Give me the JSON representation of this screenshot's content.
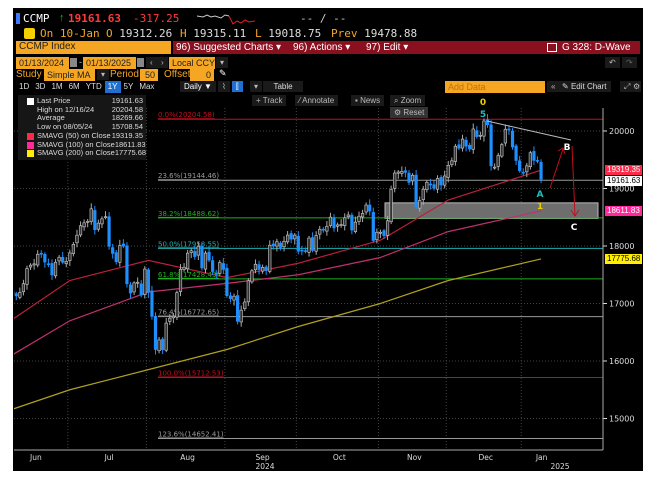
{
  "quote": {
    "ticker": "CCMP",
    "arrow": "↑",
    "last": "19161.63",
    "change": "-317.25",
    "bid_ask": "-- / --",
    "date_label": "On 10-Jan",
    "open_label": "O",
    "open": "19312.26",
    "high_label": "H",
    "high": "19315.11",
    "low_label": "L",
    "low": "19018.75",
    "prev_label": "Prev",
    "prev": "19478.88"
  },
  "toolbar": {
    "security": "CCMP Index",
    "suggested": "96) Suggested Charts ▾",
    "actions": "96) Actions ▾",
    "edit": "97) Edit ▾",
    "chart_id": "G 328: D-Wave",
    "start_date": "01/13/2024",
    "end_date": "01/13/2025",
    "currency": "Local CCY",
    "study_label": "Study",
    "study": "Simple MA",
    "period_label": "Period",
    "period": "50",
    "offset_label": "Offset",
    "offset": "0",
    "ranges": [
      "1D",
      "3D",
      "1M",
      "6M",
      "YTD",
      "1Y",
      "5Y",
      "Max"
    ],
    "selected_range": "1Y",
    "frequency": "Daily ▼",
    "table": "Table",
    "add_data_placeholder": "Add Data",
    "edit_chart": "Edit Chart",
    "track": "+ Track",
    "annotate": "Annotate",
    "news": "News",
    "zoom": "Zoom",
    "reset": "Reset"
  },
  "legend": [
    {
      "label": "Last Price",
      "value": "19161.63",
      "color": "#ffffff"
    },
    {
      "label": "High on 12/16/24",
      "value": "20204.58",
      "color": ""
    },
    {
      "label": "Average",
      "value": "18269.66",
      "color": ""
    },
    {
      "label": "Low on 08/05/24",
      "value": "15708.54",
      "color": ""
    },
    {
      "label": "SMAVG (50)  on Close",
      "value": "19319.35",
      "color": "#ff2a4a"
    },
    {
      "label": "SMAVG (100)  on Close",
      "value": "18611.83",
      "color": "#ff2a9a"
    },
    {
      "label": "SMAVG (200)  on Close",
      "value": "17775.68",
      "color": "#ffee00"
    }
  ],
  "colors": {
    "up": "#c8c8c8",
    "down": "#1e8fff",
    "sma50": "#b8203a",
    "sma100": "#c0306e",
    "sma200": "#b0a020",
    "accent": "#f5a623",
    "bar": "#8a1020"
  },
  "chart_data": {
    "type": "candlestick",
    "y_axis": {
      "ticks": [
        15000,
        16000,
        17000,
        18000,
        19000,
        20000
      ],
      "range": [
        14500,
        20400
      ],
      "side": "right"
    },
    "x_axis": {
      "labels": [
        "Jun",
        "Jul",
        "Aug",
        "Sep",
        "Oct",
        "Nov",
        "Dec",
        "Jan"
      ],
      "year_labels": [
        "2024",
        "2025"
      ]
    },
    "grid": true,
    "months": [
      {
        "month": "Jun",
        "closes": [
          16828,
          16857,
          17187,
          17173,
          17133,
          17192,
          17344,
          17608,
          17667,
          17689,
          17857,
          17862,
          17721,
          17689,
          17496,
          17718,
          17805,
          17717,
          17733
        ]
      },
      {
        "month": "Jul",
        "closes": [
          17879,
          18029,
          18188,
          18352,
          18403,
          18429,
          18647,
          18283,
          18398,
          18472,
          18509,
          17996,
          17871,
          17726,
          18008,
          17997,
          17342,
          17182,
          17358,
          17370,
          17147,
          17599
        ]
      },
      {
        "month": "Aug",
        "closes": [
          17195,
          16776,
          16200,
          16366,
          16196,
          16660,
          16745,
          16780,
          17188,
          17594,
          17631,
          17876,
          17918,
          17816,
          17997,
          17619,
          17877,
          17754,
          17556,
          17516,
          17713,
          17592
        ]
      },
      {
        "month": "Sep",
        "closes": [
          17136,
          17084,
          17127,
          16690,
          16884,
          17026,
          17395,
          17569,
          17683,
          17592,
          17628,
          17573,
          18013,
          17999,
          18074,
          17974,
          18082,
          18190,
          18119,
          18189
        ]
      },
      {
        "month": "Oct",
        "closes": [
          17910,
          17925,
          17918,
          18138,
          17924,
          18183,
          18292,
          18282,
          18342,
          18502,
          18315,
          18367,
          18373,
          18490,
          18540,
          18277,
          18415,
          18518,
          18567,
          18712,
          18607,
          18095,
          18239
        ]
      },
      {
        "month": "Nov",
        "closes": [
          18239,
          18179,
          18439,
          18983,
          19269,
          19287,
          19298,
          19281,
          19107,
          19231,
          18680,
          18791,
          18988,
          19109,
          19060,
          19004,
          19175,
          19060,
          19218
        ]
      },
      {
        "month": "Dec",
        "closes": [
          19404,
          19481,
          19735,
          19700,
          19860,
          19736,
          19687,
          20035,
          19903,
          19926,
          20174,
          20109,
          19393,
          19372,
          19573,
          19764,
          20031,
          20020,
          19722,
          19487,
          19311
        ]
      },
      {
        "month": "Jan",
        "closes": [
          19281,
          19394,
          19622,
          19489,
          19478,
          19162
        ]
      }
    ],
    "moving_averages": [
      {
        "name": "SMAVG (50)",
        "last": 19319.35,
        "points": [
          [
            "Jun",
            16600
          ],
          [
            "Jul",
            17400
          ],
          [
            "Aug",
            17750
          ],
          [
            "Sep",
            17450
          ],
          [
            "Oct",
            17700
          ],
          [
            "Nov",
            18100
          ],
          [
            "Dec",
            18800
          ],
          [
            "Jan",
            19319.35
          ]
        ]
      },
      {
        "name": "SMAVG (100)",
        "last": 18611.83,
        "points": [
          [
            "Jun",
            16000
          ],
          [
            "Jul",
            16700
          ],
          [
            "Aug",
            17200
          ],
          [
            "Sep",
            17350
          ],
          [
            "Oct",
            17500
          ],
          [
            "Nov",
            17800
          ],
          [
            "Dec",
            18250
          ],
          [
            "Jan",
            18611.83
          ]
        ]
      },
      {
        "name": "SMAVG (200)",
        "last": 17775.68,
        "points": [
          [
            "Jun",
            15100
          ],
          [
            "Jul",
            15500
          ],
          [
            "Aug",
            15850
          ],
          [
            "Sep",
            16200
          ],
          [
            "Oct",
            16600
          ],
          [
            "Nov",
            17000
          ],
          [
            "Dec",
            17400
          ],
          [
            "Jan",
            17775.68
          ]
        ]
      }
    ],
    "fibonacci": [
      {
        "label": "0.0%(20204.58)",
        "value": 20204.58,
        "color": "#c01020"
      },
      {
        "label": "23.6%(19144.46)",
        "value": 19144.46,
        "color": "#999999"
      },
      {
        "label": "38.2%(18488.62)",
        "value": 18488.62,
        "color": "#1db01d"
      },
      {
        "label": "50.0%(17958.55)",
        "value": 17958.55,
        "color": "#20b0b0"
      },
      {
        "label": "61.8%(17428.49)",
        "value": 17428.49,
        "color": "#1db01d"
      },
      {
        "label": "76.4%(16772.65)",
        "value": 16772.65,
        "color": "#999999"
      },
      {
        "label": "100.0%(15712.53)",
        "value": 15712.53,
        "color": "#c01020"
      },
      {
        "label": "123.6%(14652.41)",
        "value": 14652.41,
        "color": "#999999"
      }
    ],
    "wave_labels": [
      {
        "text": "0",
        "color": "#e8d000"
      },
      {
        "text": "5",
        "color": "#20c0c0"
      },
      {
        "text": "A",
        "color": "#20c0c0"
      },
      {
        "text": "1",
        "color": "#e8d000"
      },
      {
        "text": "B",
        "color": "#ffffff"
      },
      {
        "text": "C",
        "color": "#ffffff"
      }
    ],
    "target_zone": [
      18480,
      18750
    ],
    "price_badges": [
      {
        "value": "19319.35",
        "color": "#ff2a4a"
      },
      {
        "value": "19161.63",
        "color": "#ffffff"
      },
      {
        "value": "18611.83",
        "color": "#ff2a9a"
      },
      {
        "value": "17775.68",
        "color": "#ffee00"
      }
    ]
  }
}
